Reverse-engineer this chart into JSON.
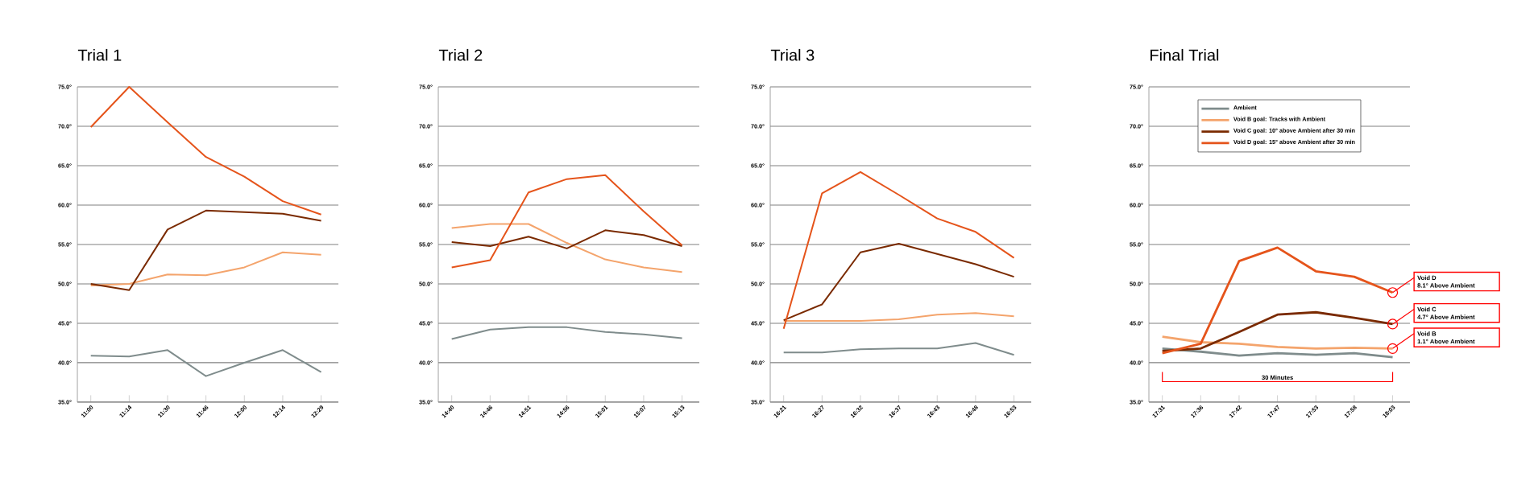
{
  "chart_data": [
    {
      "type": "line",
      "title": "Trial 1",
      "categories": [
        "11:00",
        "11:14",
        "11:30",
        "11:46",
        "12:00",
        "12:14",
        "12:29"
      ],
      "series": [
        {
          "color": "#7f8c8c",
          "values": [
            40.9,
            40.8,
            41.6,
            38.3,
            40.0,
            41.6,
            38.8
          ]
        },
        {
          "color": "#f4a46c",
          "values": [
            49.8,
            50.0,
            51.2,
            51.1,
            52.1,
            54.0,
            53.7
          ]
        },
        {
          "color": "#7a2a00",
          "values": [
            50.0,
            49.2,
            56.9,
            59.3,
            59.1,
            58.9,
            58.0
          ]
        },
        {
          "color": "#e5541b",
          "values": [
            69.9,
            75.0,
            70.5,
            66.1,
            63.6,
            60.5,
            58.8
          ]
        }
      ],
      "ylim": [
        35,
        75
      ],
      "yticks": [
        {
          "value": 35,
          "label": "35.0°"
        },
        {
          "value": 40,
          "label": "40.0°"
        },
        {
          "value": 45,
          "label": "45.0°"
        },
        {
          "value": 50,
          "label": "50.0°"
        },
        {
          "value": 55,
          "label": "55.0°"
        },
        {
          "value": 60,
          "label": "60.0°"
        },
        {
          "value": 65,
          "label": "65.0°"
        },
        {
          "value": 70,
          "label": "70.0°"
        },
        {
          "value": 75,
          "label": "75.0°"
        }
      ],
      "grid": "y"
    },
    {
      "type": "line",
      "title": "Trial 2",
      "categories": [
        "14:40",
        "14:46",
        "14:51",
        "14:56",
        "15:01",
        "15:07",
        "15:13"
      ],
      "series": [
        {
          "color": "#7f8c8c",
          "values": [
            43.0,
            44.2,
            44.5,
            44.5,
            43.9,
            43.6,
            43.1
          ]
        },
        {
          "color": "#f4a46c",
          "values": [
            57.1,
            57.6,
            57.6,
            55.2,
            53.1,
            52.1,
            51.5
          ]
        },
        {
          "color": "#7a2a00",
          "values": [
            55.3,
            54.8,
            56.0,
            54.5,
            56.8,
            56.2,
            54.8
          ]
        },
        {
          "color": "#e5541b",
          "values": [
            52.1,
            53.0,
            61.6,
            63.3,
            63.8,
            59.2,
            54.9
          ]
        }
      ],
      "ylim": [
        35,
        75
      ],
      "yticks": [
        {
          "value": 35,
          "label": "35.0°"
        },
        {
          "value": 40,
          "label": "40.0°"
        },
        {
          "value": 45,
          "label": "45.0°"
        },
        {
          "value": 50,
          "label": "50.0°"
        },
        {
          "value": 55,
          "label": "55.0°"
        },
        {
          "value": 60,
          "label": "60.0°"
        },
        {
          "value": 65,
          "label": "65.0°"
        },
        {
          "value": 70,
          "label": "70.0°"
        },
        {
          "value": 75,
          "label": "75.0°"
        }
      ],
      "grid": "y"
    },
    {
      "type": "line",
      "title": "Trial 3",
      "categories": [
        "16:21",
        "16:27",
        "16:32",
        "16:37",
        "16:43",
        "16:48",
        "16:53"
      ],
      "series": [
        {
          "color": "#7f8c8c",
          "values": [
            41.3,
            41.3,
            41.7,
            41.8,
            41.8,
            42.5,
            41.0
          ]
        },
        {
          "color": "#f4a46c",
          "values": [
            45.3,
            45.3,
            45.3,
            45.5,
            46.1,
            46.3,
            45.9
          ]
        },
        {
          "color": "#7a2a00",
          "values": [
            45.4,
            47.4,
            54.0,
            55.1,
            53.8,
            52.5,
            50.9
          ]
        },
        {
          "color": "#e5541b",
          "values": [
            44.3,
            61.5,
            64.2,
            61.3,
            58.3,
            56.6,
            53.3
          ]
        }
      ],
      "ylim": [
        35,
        75
      ],
      "yticks": [
        {
          "value": 35,
          "label": "35.0°"
        },
        {
          "value": 40,
          "label": "40.0°"
        },
        {
          "value": 45,
          "label": "45.0°"
        },
        {
          "value": 50,
          "label": "50.0°"
        },
        {
          "value": 55,
          "label": "55.0°"
        },
        {
          "value": 60,
          "label": "60.0°"
        },
        {
          "value": 65,
          "label": "65.0°"
        },
        {
          "value": 70,
          "label": "70.0°"
        },
        {
          "value": 75,
          "label": "75.0°"
        }
      ],
      "grid": "y"
    },
    {
      "type": "line",
      "title": "Final Trial",
      "categories": [
        "17:31",
        "17:36",
        "17:42",
        "17:47",
        "17:53",
        "17:58",
        "18:03"
      ],
      "series": [
        {
          "name": "Ambient",
          "color": "#7f8c8c",
          "values": [
            41.8,
            41.4,
            40.9,
            41.2,
            41.0,
            41.2,
            40.7
          ]
        },
        {
          "name": "Void B goal: Tracks with Ambient",
          "color": "#f4a46c",
          "values": [
            43.3,
            42.6,
            42.4,
            42.0,
            41.8,
            41.9,
            41.8
          ]
        },
        {
          "name": "Void C goal: 10° above Ambient after 30 min",
          "color": "#7a2a00",
          "values": [
            41.5,
            41.8,
            43.9,
            46.1,
            46.4,
            45.7,
            44.9
          ]
        },
        {
          "name": "Void D goal: 15° above Ambient after 30 min",
          "color": "#e5541b",
          "values": [
            41.2,
            42.4,
            52.9,
            54.6,
            51.6,
            50.9,
            48.9
          ]
        }
      ],
      "ylim": [
        35,
        75
      ],
      "yticks": [
        {
          "value": 35,
          "label": "35.0°"
        },
        {
          "value": 40,
          "label": "40.0°"
        },
        {
          "value": 45,
          "label": "45.0°"
        },
        {
          "value": 50,
          "label": "50.0°"
        },
        {
          "value": 55,
          "label": "55.0°"
        },
        {
          "value": 60,
          "label": "60.0°"
        },
        {
          "value": 65,
          "label": "65.0°"
        },
        {
          "value": 70,
          "label": "70.0°"
        },
        {
          "value": 75,
          "label": "75.0°"
        }
      ],
      "grid": "y",
      "legend": "top",
      "annotations": [
        {
          "text": "Void D",
          "x": "18:03",
          "y": 48.9
        },
        "8.1° Above Ambient",
        {
          "text": "Void C",
          "x": "18:03",
          "y": 44.9
        },
        "4.7° Above Ambient",
        {
          "text": "Void B",
          "x": "18:03",
          "y": 41.8
        },
        "1.1° Above Ambient",
        "30 Minutes"
      ]
    }
  ]
}
